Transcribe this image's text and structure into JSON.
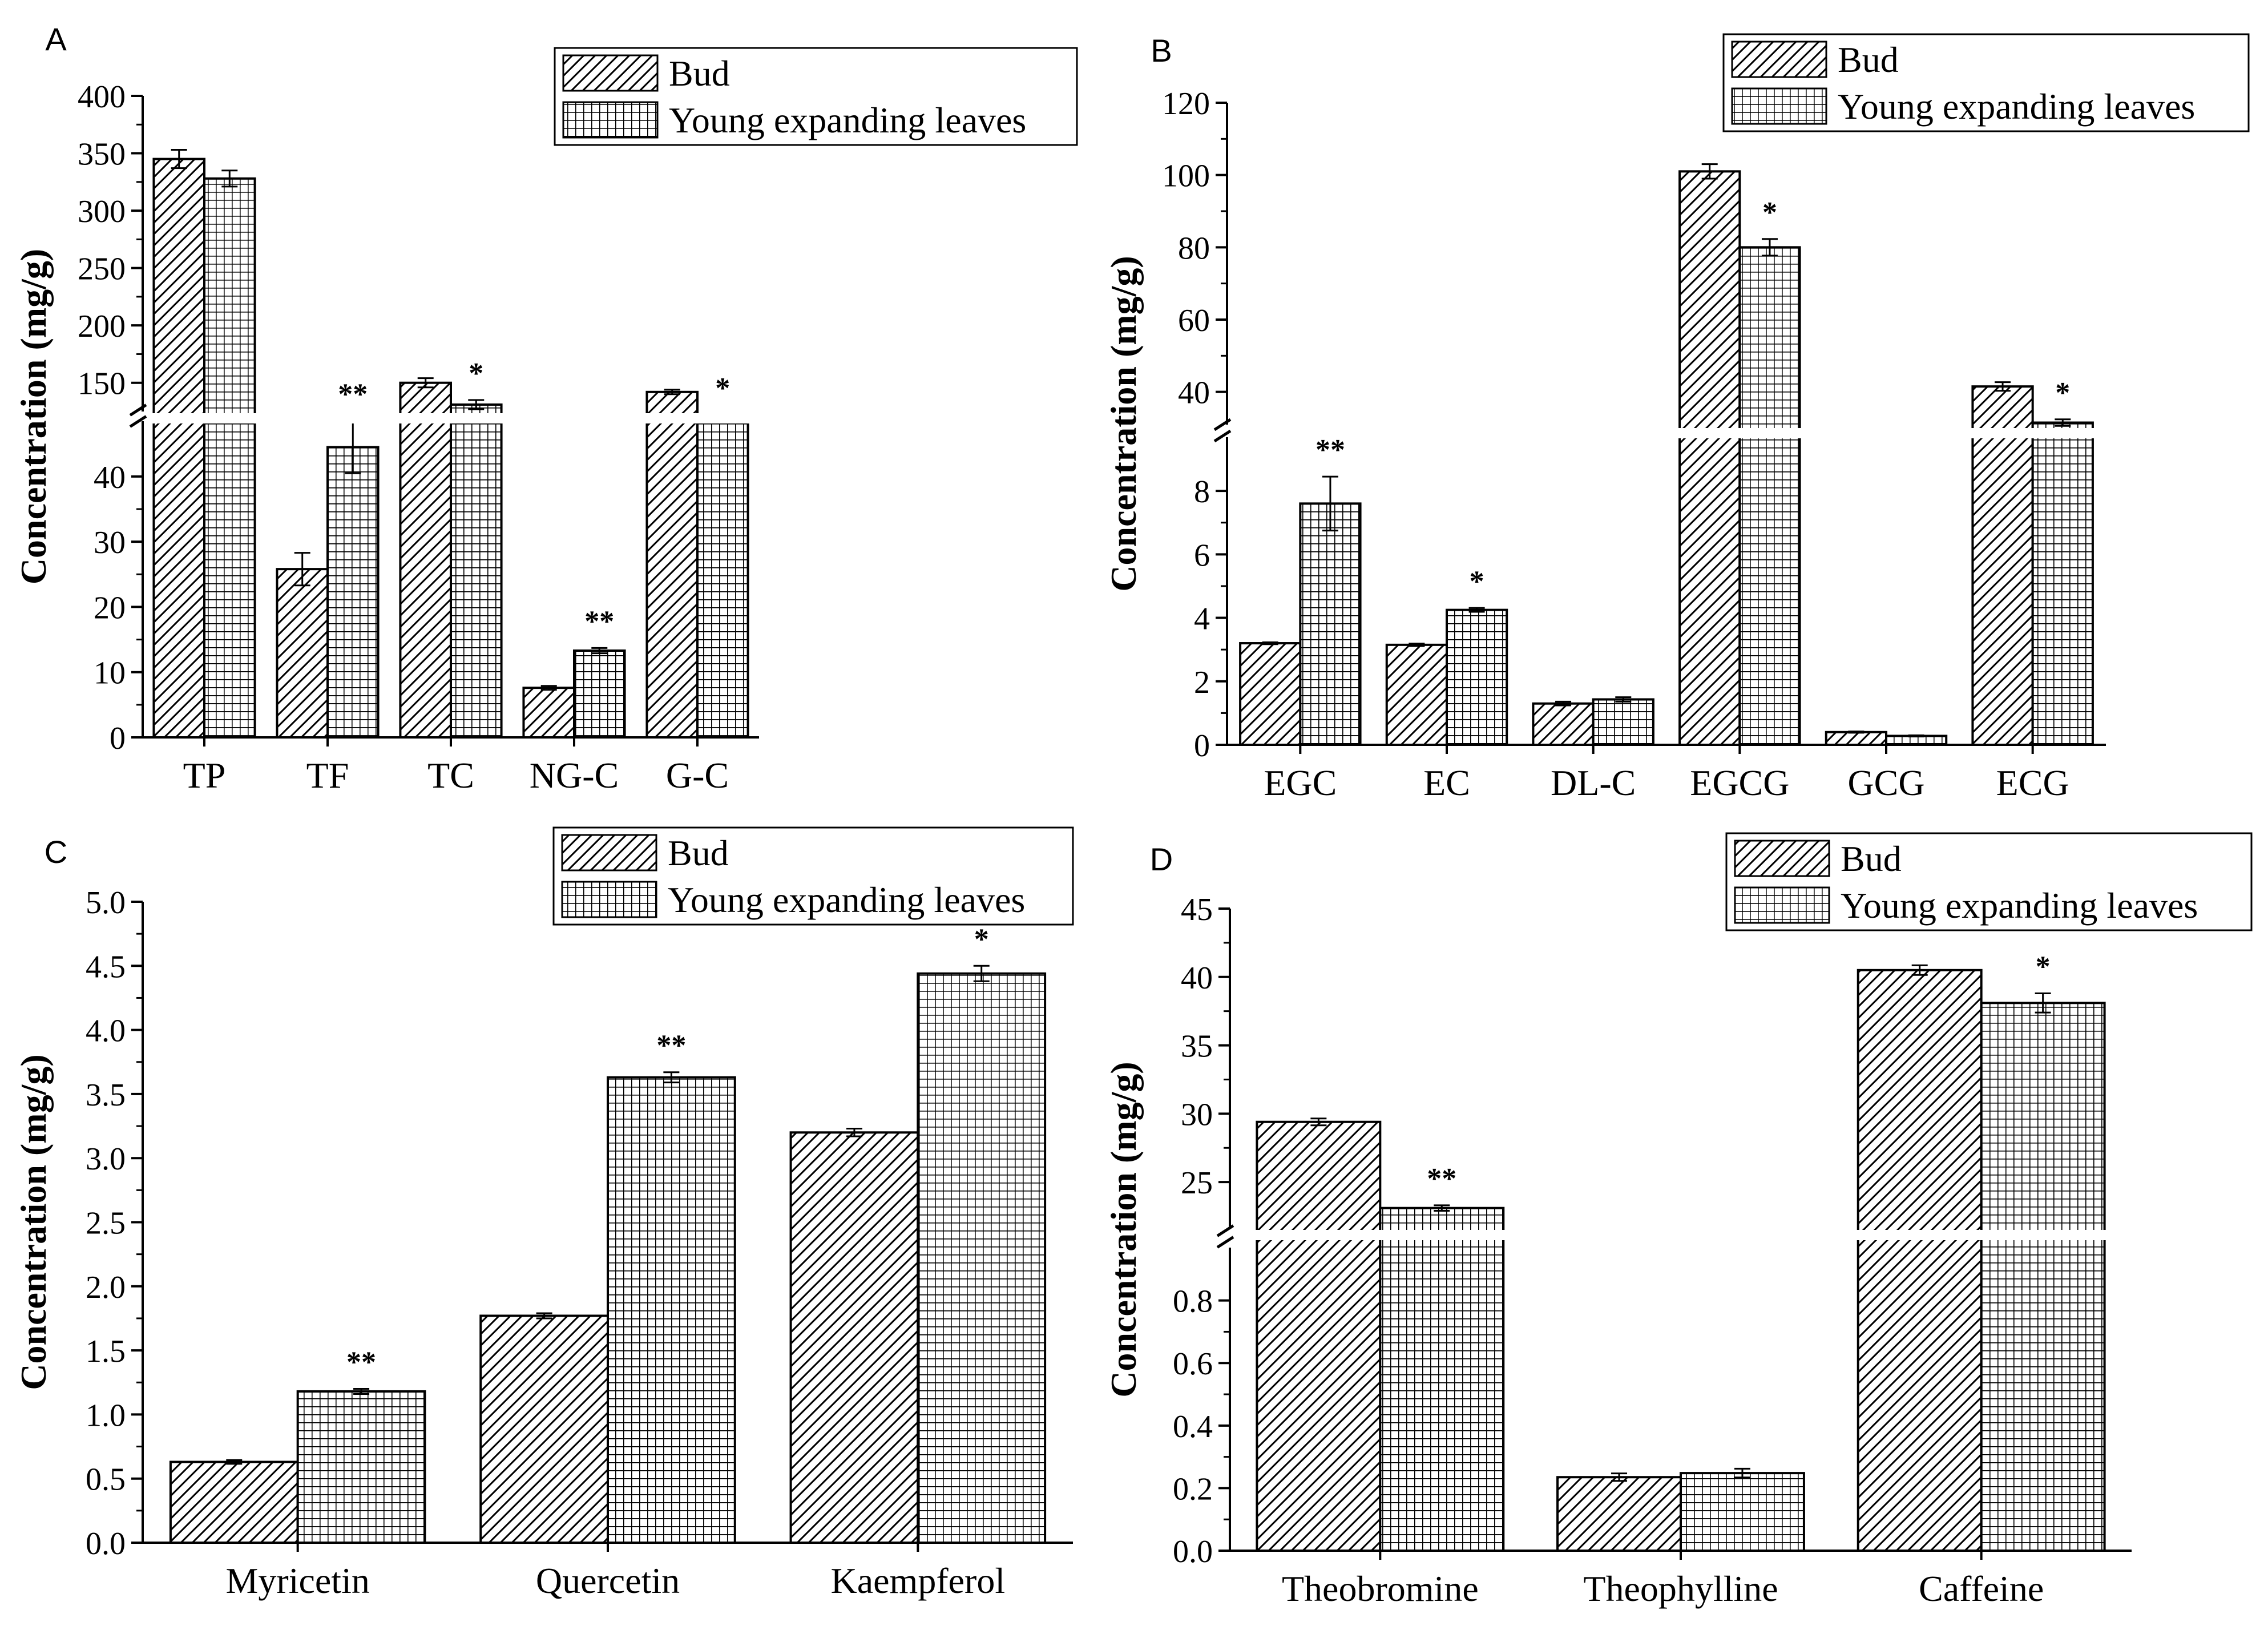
{
  "figure_type": "grouped bar chart panels",
  "legend": {
    "bud_label": "Bud",
    "young_label": "Young expanding leaves"
  },
  "colors": {
    "bar_fill": "#ffffff",
    "stroke": "#000000",
    "background": "#ffffff"
  },
  "chart_data": [
    {
      "id": "A",
      "panel_label": "A",
      "type": "bar",
      "title": "",
      "xlabel": "",
      "ylabel": "Concentration (mg/g)",
      "legend_position": "top-right",
      "categories": [
        "TP",
        "TF",
        "TC",
        "NG-C",
        "G-C"
      ],
      "series": [
        {
          "name": "Bud",
          "values": [
            345,
            25.8,
            150,
            7.6,
            142
          ],
          "errors": [
            8,
            2.5,
            4,
            0.3,
            2
          ]
        },
        {
          "name": "Young expanding leaves",
          "values": [
            328,
            44.5,
            131,
            13.3,
            116
          ],
          "errors": [
            7,
            4,
            4,
            0.4,
            2
          ]
        }
      ],
      "significance": [
        [
          "",
          ""
        ],
        [
          "",
          "**"
        ],
        [
          "",
          "*"
        ],
        [
          "",
          "**"
        ],
        [
          "",
          "*"
        ]
      ],
      "axis_break": {
        "lower_range": [
          0,
          49
        ],
        "upper_range": [
          122,
          400
        ]
      },
      "yticks_lower": [
        0,
        10,
        20,
        30,
        40
      ],
      "yticks_upper": [
        150,
        200,
        250,
        300,
        350,
        400
      ]
    },
    {
      "id": "B",
      "panel_label": "B",
      "type": "bar",
      "title": "",
      "xlabel": "",
      "ylabel": "Concentration (mg/g)",
      "legend_position": "top-right",
      "categories": [
        "EGC",
        "EC",
        "DL-C",
        "EGCG",
        "GCG",
        "ECG"
      ],
      "series": [
        {
          "name": "Bud",
          "values": [
            3.2,
            3.15,
            1.3,
            101,
            0.4,
            41.5
          ],
          "errors": [
            0.03,
            0.04,
            0.06,
            2,
            0.02,
            1.2
          ]
        },
        {
          "name": "Young expanding leaves",
          "values": [
            7.6,
            4.25,
            1.43,
            80,
            0.28,
            31.5
          ],
          "errors": [
            0.85,
            0.06,
            0.07,
            2.3,
            0.02,
            0.9
          ]
        }
      ],
      "significance": [
        [
          "",
          "**"
        ],
        [
          "",
          "*"
        ],
        [
          "",
          ""
        ],
        [
          "",
          "*"
        ],
        [
          "",
          ""
        ],
        [
          "",
          "*"
        ]
      ],
      "axis_break": {
        "lower_range": [
          0,
          9.8
        ],
        "upper_range": [
          30,
          120
        ]
      },
      "yticks_lower": [
        0,
        2,
        4,
        6,
        8
      ],
      "yticks_upper": [
        40,
        60,
        80,
        100,
        120
      ]
    },
    {
      "id": "C",
      "panel_label": "C",
      "type": "bar",
      "title": "",
      "xlabel": "",
      "ylabel": "Concentration (mg/g)",
      "legend_position": "top-right",
      "categories": [
        "Myricetin",
        "Quercetin",
        "Kaempferol"
      ],
      "series": [
        {
          "name": "Bud",
          "values": [
            0.63,
            1.77,
            3.2
          ],
          "errors": [
            0.015,
            0.02,
            0.03
          ]
        },
        {
          "name": "Young expanding leaves",
          "values": [
            1.18,
            3.63,
            4.44
          ],
          "errors": [
            0.02,
            0.04,
            0.06
          ]
        }
      ],
      "significance": [
        [
          "",
          "**"
        ],
        [
          "",
          "**"
        ],
        [
          "",
          "*"
        ]
      ],
      "axis_break": null,
      "ylim": [
        0,
        5
      ],
      "yticks": [
        "0.0",
        "0.5",
        "1.0",
        "1.5",
        "2.0",
        "2.5",
        "3.0",
        "3.5",
        "4.0",
        "4.5",
        "5.0"
      ]
    },
    {
      "id": "D",
      "panel_label": "D",
      "type": "bar",
      "title": "",
      "xlabel": "",
      "ylabel": "Concentration (mg/g)",
      "legend_position": "top-right",
      "categories": [
        "Theobromine",
        "Theophylline",
        "Caffeine"
      ],
      "series": [
        {
          "name": "Bud",
          "values": [
            29.4,
            0.235,
            40.5
          ],
          "errors": [
            0.25,
            0.012,
            0.35
          ]
        },
        {
          "name": "Young expanding leaves",
          "values": [
            23.1,
            0.248,
            38.1
          ],
          "errors": [
            0.2,
            0.014,
            0.7
          ]
        }
      ],
      "significance": [
        [
          "",
          "**"
        ],
        [
          "",
          ""
        ],
        [
          "",
          "*"
        ]
      ],
      "axis_break": {
        "lower_range": [
          0,
          0.98
        ],
        "upper_range": [
          21.5,
          45
        ]
      },
      "yticks_lower": [
        "0.0",
        "0.2",
        "0.4",
        "0.6",
        "0.8"
      ],
      "yticks_upper": [
        "25",
        "30",
        "35",
        "40",
        "45"
      ]
    }
  ]
}
